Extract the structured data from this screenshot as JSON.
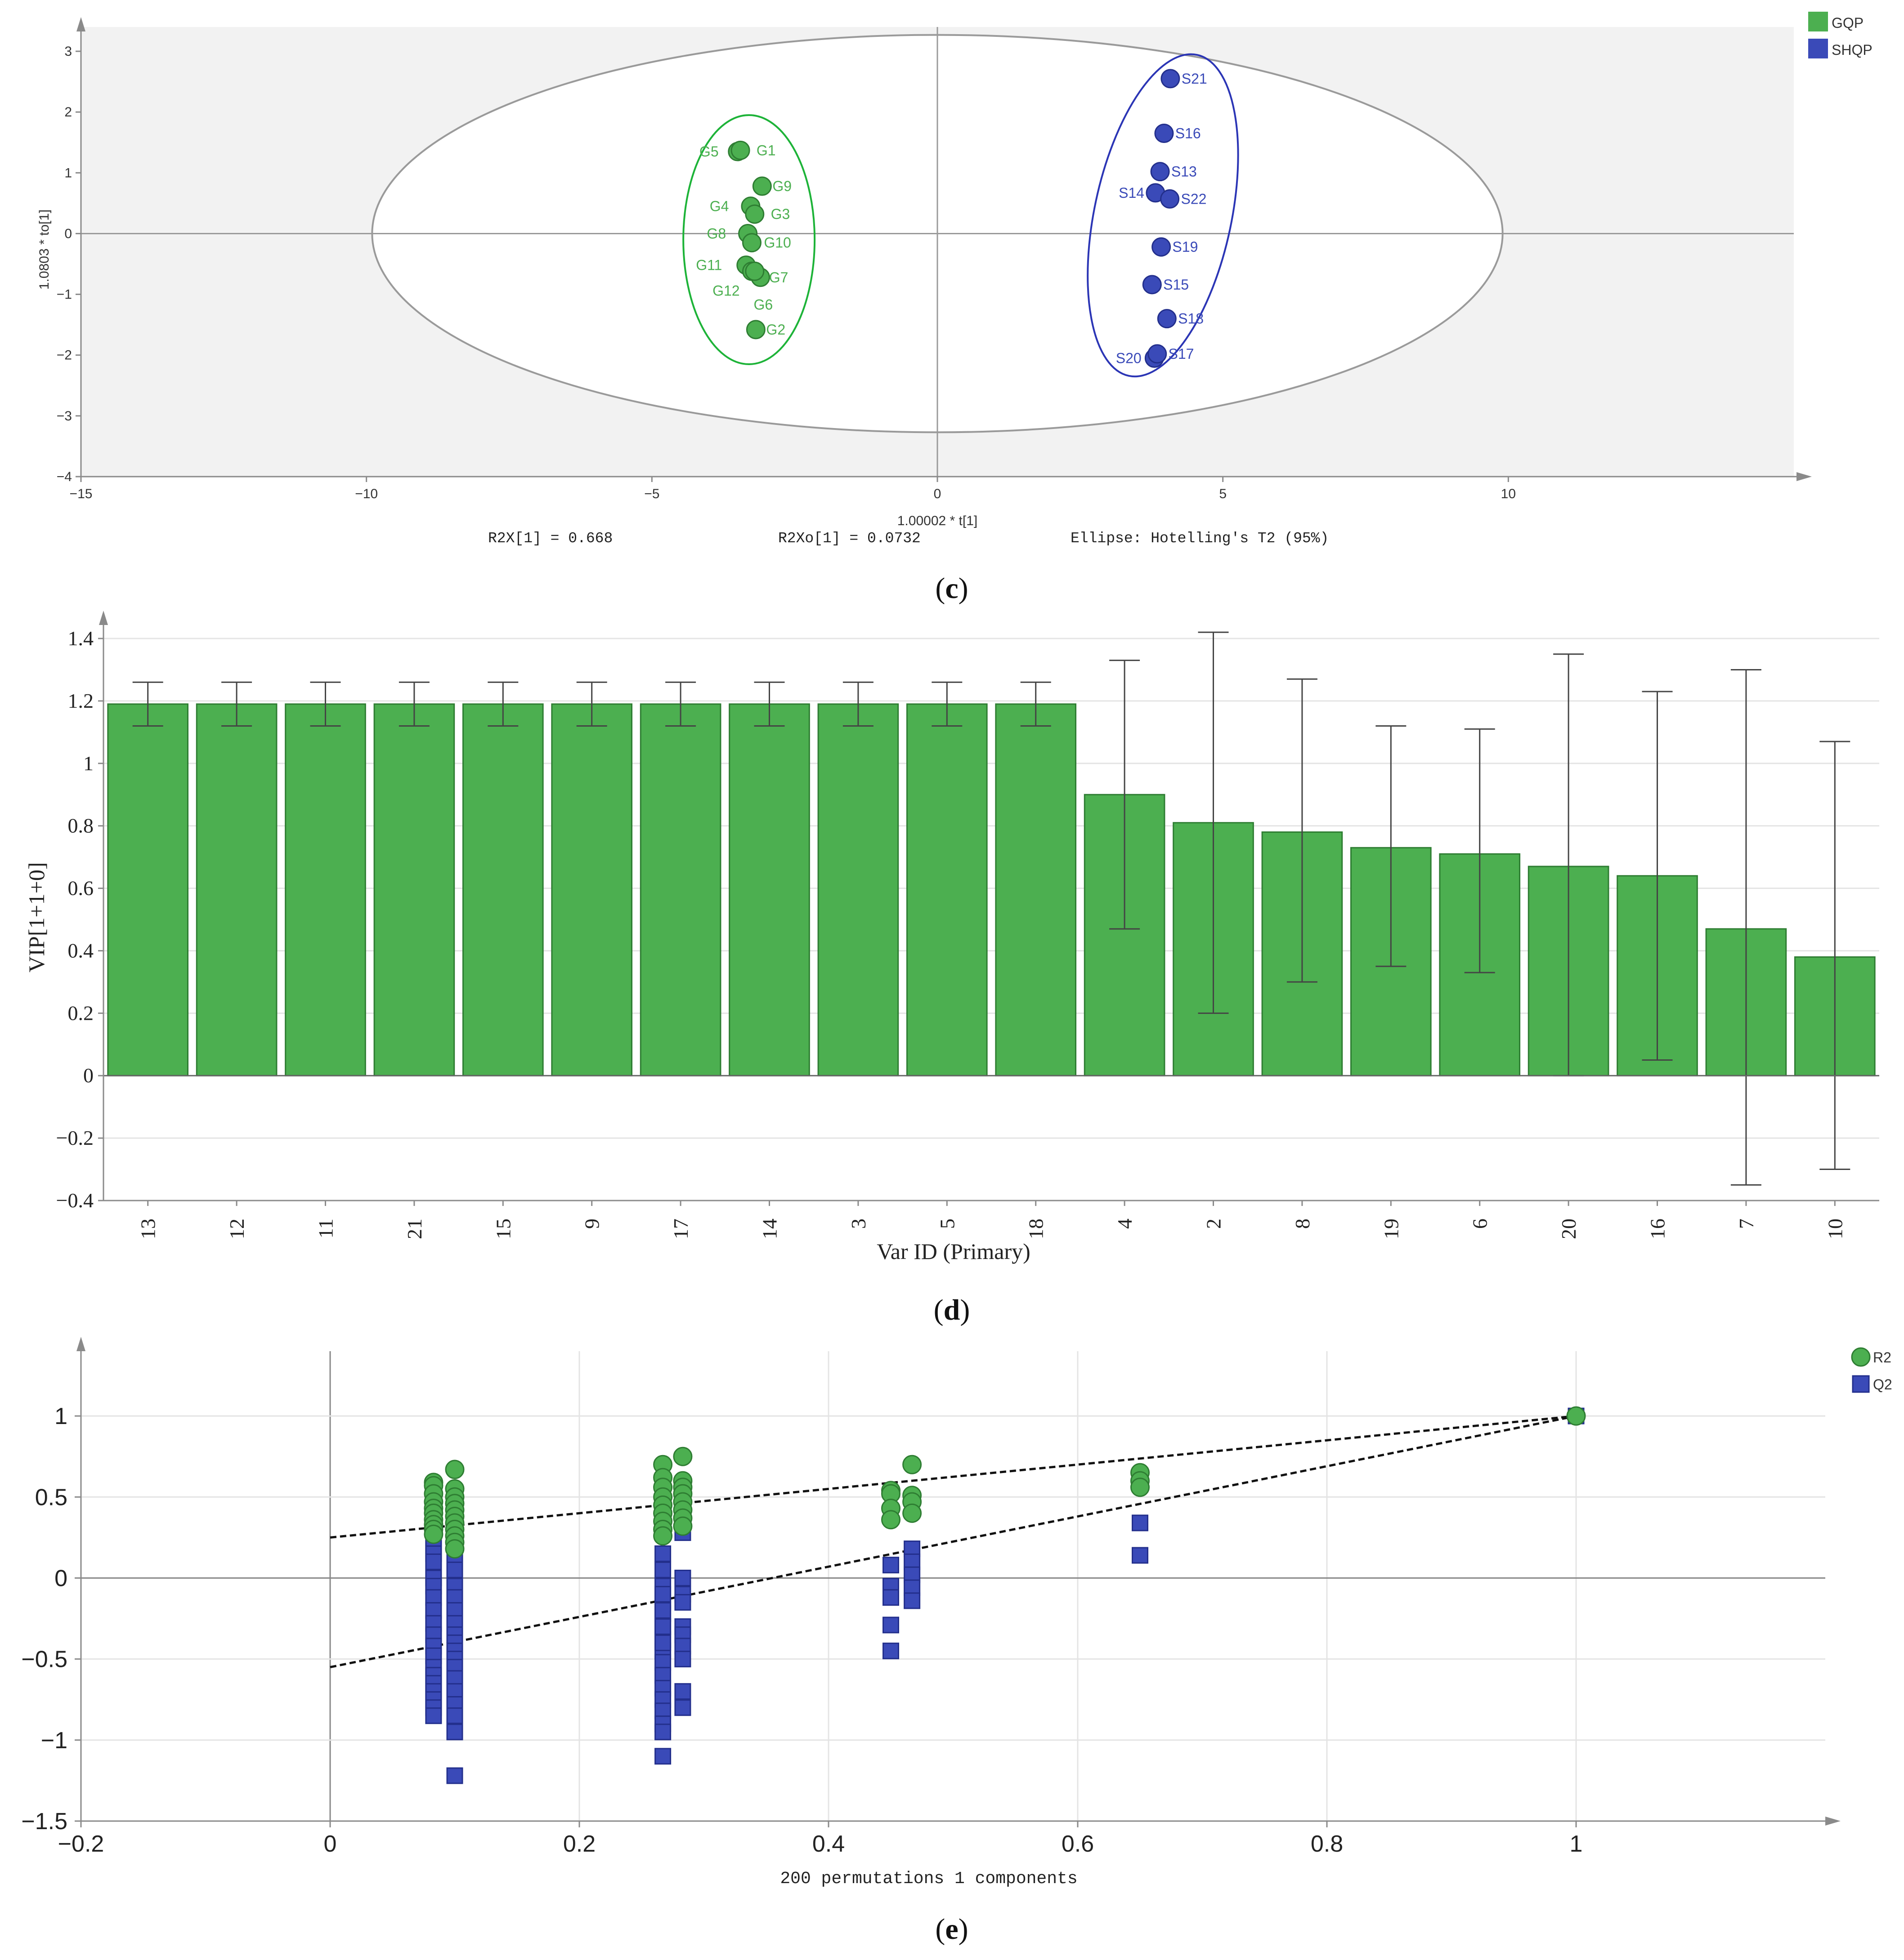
{
  "colors": {
    "green": "#4caf50",
    "green_stroke": "#2e7d32",
    "blue": "#3a4ab8",
    "blue_stroke": "#232f8c",
    "panel_bg": "#f2f2f2",
    "axis": "#8a8a8a",
    "grid": "#e4e4e4"
  },
  "chart_data": [
    {
      "id": "c",
      "type": "scatter",
      "panel_label_open": "(",
      "panel_label": "c",
      "panel_label_close": ")",
      "xlabel": "1.00002 * t[1]",
      "ylabel": "1.0803 * to[1]",
      "xlim": [
        -15,
        15
      ],
      "ylim": [
        -4,
        3.4
      ],
      "xticks": [
        -15,
        -10,
        -5,
        0,
        5,
        10
      ],
      "yticks": [
        -4,
        -3,
        -2,
        -1,
        0,
        1,
        2,
        3
      ],
      "stats": {
        "r2x": "R2X[1] = 0.668",
        "r2xo": "R2Xo[1] = 0.0732",
        "ellipse": "Ellipse: Hotelling's T2 (95%)"
      },
      "legend": [
        {
          "label": "GQP",
          "color": "#4caf50"
        },
        {
          "label": "SHQP",
          "color": "#3a4ab8"
        }
      ],
      "hotelling_ellipse": {
        "cx": 0,
        "cy": 0,
        "rx": 9.9,
        "ry": 3.27
      },
      "group_ellipses": [
        {
          "group": "GQP",
          "cx": -3.3,
          "cy": -0.1,
          "rx": 1.15,
          "ry": 2.05,
          "angle": 0,
          "color": "#1db338"
        },
        {
          "group": "SHQP",
          "cx": 3.95,
          "cy": 0.3,
          "rx": 1.2,
          "ry": 2.7,
          "angle": 12,
          "color": "#2b35b5"
        }
      ],
      "series": [
        {
          "name": "GQP",
          "points": [
            {
              "label": "G5",
              "x": -3.5,
              "y": 1.35,
              "lx": -0.5,
              "ly": 0
            },
            {
              "label": "G1",
              "x": -3.45,
              "y": 1.37,
              "lx": 0.45,
              "ly": 0
            },
            {
              "label": "G9",
              "x": -3.07,
              "y": 0.78,
              "lx": 0.35,
              "ly": 0
            },
            {
              "label": "G4",
              "x": -3.27,
              "y": 0.45,
              "lx": -0.55,
              "ly": 0
            },
            {
              "label": "G3",
              "x": -3.2,
              "y": 0.32,
              "lx": 0.45,
              "ly": 0
            },
            {
              "label": "G8",
              "x": -3.32,
              "y": 0.0,
              "lx": -0.55,
              "ly": 0
            },
            {
              "label": "G10",
              "x": -3.25,
              "y": -0.15,
              "lx": 0.45,
              "ly": 0
            },
            {
              "label": "G11",
              "x": -3.35,
              "y": -0.52,
              "lx": -0.65,
              "ly": 0
            },
            {
              "label": "G7",
              "x": -3.1,
              "y": -0.72,
              "lx": 0.32,
              "ly": 0
            },
            {
              "label": "G12",
              "x": -3.25,
              "y": -0.62,
              "lx": -0.45,
              "ly": -0.32
            },
            {
              "label": "G6",
              "x": -3.2,
              "y": -0.62,
              "lx": 0.15,
              "ly": -0.55
            },
            {
              "label": "G2",
              "x": -3.18,
              "y": -1.58,
              "lx": 0.35,
              "ly": 0
            }
          ]
        },
        {
          "name": "SHQP",
          "points": [
            {
              "label": "S21",
              "x": 4.08,
              "y": 2.55,
              "lx": 0.42,
              "ly": 0
            },
            {
              "label": "S16",
              "x": 3.97,
              "y": 1.65,
              "lx": 0.42,
              "ly": 0
            },
            {
              "label": "S13",
              "x": 3.9,
              "y": 1.02,
              "lx": 0.42,
              "ly": 0
            },
            {
              "label": "S14",
              "x": 3.82,
              "y": 0.67,
              "lx": -0.42,
              "ly": 0
            },
            {
              "label": "S22",
              "x": 4.07,
              "y": 0.57,
              "lx": 0.42,
              "ly": 0
            },
            {
              "label": "S19",
              "x": 3.92,
              "y": -0.22,
              "lx": 0.42,
              "ly": 0
            },
            {
              "label": "S15",
              "x": 3.76,
              "y": -0.84,
              "lx": 0.42,
              "ly": 0
            },
            {
              "label": "S18",
              "x": 4.02,
              "y": -1.4,
              "lx": 0.42,
              "ly": 0
            },
            {
              "label": "S20",
              "x": 3.8,
              "y": -2.05,
              "lx": -0.45,
              "ly": 0
            },
            {
              "label": "S17",
              "x": 3.85,
              "y": -1.98,
              "lx": 0.42,
              "ly": 0
            }
          ]
        }
      ]
    },
    {
      "id": "d",
      "type": "bar",
      "panel_label_open": "(",
      "panel_label": "d",
      "panel_label_close": ")",
      "xlabel": "Var ID (Primary)",
      "ylabel": "VIP[1+1+0]",
      "ylim": [
        -0.4,
        1.4
      ],
      "yticks": [
        -0.4,
        -0.2,
        0,
        0.2,
        0.4,
        0.6,
        0.8,
        1,
        1.2,
        1.4
      ],
      "categories": [
        "13",
        "12",
        "11",
        "21",
        "15",
        "9",
        "17",
        "14",
        "3",
        "5",
        "18",
        "4",
        "2",
        "8",
        "19",
        "6",
        "20",
        "16",
        "7",
        "10"
      ],
      "values": [
        1.19,
        1.19,
        1.19,
        1.19,
        1.19,
        1.19,
        1.19,
        1.19,
        1.19,
        1.19,
        1.19,
        0.9,
        0.81,
        0.78,
        0.73,
        0.71,
        0.67,
        0.64,
        0.47,
        0.38
      ],
      "error_low": [
        1.12,
        1.12,
        1.12,
        1.12,
        1.12,
        1.12,
        1.12,
        1.12,
        1.12,
        1.12,
        1.12,
        0.47,
        0.2,
        0.3,
        0.35,
        0.33,
        0.0,
        0.05,
        -0.35,
        -0.3
      ],
      "error_high": [
        1.26,
        1.26,
        1.26,
        1.26,
        1.26,
        1.26,
        1.26,
        1.26,
        1.26,
        1.26,
        1.26,
        1.33,
        1.42,
        1.27,
        1.12,
        1.11,
        1.35,
        1.23,
        1.3,
        1.07
      ],
      "color": "#4caf50"
    },
    {
      "id": "e",
      "type": "scatter",
      "panel_label_open": "(",
      "panel_label": "e",
      "panel_label_close": ")",
      "xlabel": "200 permutations 1 components",
      "xlim": [
        -0.2,
        1.2
      ],
      "ylim": [
        -1.5,
        1.4
      ],
      "xticks": [
        -0.2,
        0,
        0.2,
        0.4,
        0.6,
        0.8,
        1
      ],
      "yticks": [
        -1.5,
        -1,
        -0.5,
        0,
        0.5,
        1
      ],
      "legend": [
        {
          "label": "R2",
          "marker": "circle",
          "color": "#4caf50"
        },
        {
          "label": "Q2",
          "marker": "square",
          "color": "#3a4ab8"
        }
      ],
      "regression_lines": [
        {
          "name": "R2",
          "x": [
            0,
            1
          ],
          "y": [
            0.25,
            1.0
          ]
        },
        {
          "name": "Q2",
          "x": [
            0,
            1
          ],
          "y": [
            -0.55,
            1.0
          ]
        }
      ],
      "series": [
        {
          "name": "R2",
          "marker": "circle",
          "x": [
            0.083,
            0.083,
            0.083,
            0.083,
            0.083,
            0.083,
            0.083,
            0.083,
            0.083,
            0.083,
            0.1,
            0.1,
            0.1,
            0.1,
            0.1,
            0.1,
            0.1,
            0.1,
            0.1,
            0.1,
            0.1,
            0.267,
            0.267,
            0.267,
            0.267,
            0.267,
            0.267,
            0.267,
            0.267,
            0.267,
            0.283,
            0.283,
            0.283,
            0.283,
            0.283,
            0.283,
            0.283,
            0.283,
            0.45,
            0.45,
            0.45,
            0.45,
            0.467,
            0.467,
            0.467,
            0.467,
            0.65,
            0.65,
            0.65,
            1.0
          ],
          "y": [
            0.59,
            0.57,
            0.52,
            0.47,
            0.43,
            0.4,
            0.36,
            0.33,
            0.3,
            0.27,
            0.67,
            0.55,
            0.5,
            0.46,
            0.42,
            0.38,
            0.34,
            0.3,
            0.26,
            0.22,
            0.18,
            0.7,
            0.62,
            0.56,
            0.5,
            0.45,
            0.4,
            0.35,
            0.3,
            0.26,
            0.75,
            0.6,
            0.56,
            0.52,
            0.47,
            0.42,
            0.37,
            0.32,
            0.54,
            0.52,
            0.43,
            0.36,
            0.7,
            0.51,
            0.47,
            0.4,
            0.65,
            0.6,
            0.56,
            1.0
          ]
        },
        {
          "name": "Q2",
          "marker": "square",
          "x": [
            0.083,
            0.083,
            0.083,
            0.083,
            0.083,
            0.083,
            0.083,
            0.083,
            0.083,
            0.083,
            0.083,
            0.083,
            0.083,
            0.083,
            0.083,
            0.083,
            0.083,
            0.083,
            0.083,
            0.083,
            0.1,
            0.1,
            0.1,
            0.1,
            0.1,
            0.1,
            0.1,
            0.1,
            0.1,
            0.1,
            0.1,
            0.1,
            0.1,
            0.1,
            0.1,
            0.1,
            0.1,
            0.1,
            0.1,
            0.1,
            0.1,
            0.1,
            0.1,
            0.267,
            0.267,
            0.267,
            0.267,
            0.267,
            0.267,
            0.267,
            0.267,
            0.267,
            0.267,
            0.267,
            0.267,
            0.267,
            0.267,
            0.267,
            0.267,
            0.267,
            0.267,
            0.267,
            0.267,
            0.283,
            0.283,
            0.283,
            0.283,
            0.283,
            0.283,
            0.283,
            0.283,
            0.283,
            0.283,
            0.283,
            0.283,
            0.283,
            0.45,
            0.45,
            0.45,
            0.45,
            0.45,
            0.467,
            0.467,
            0.467,
            0.467,
            0.467,
            0.65,
            0.65,
            1.0
          ],
          "y": [
            0.3,
            0.25,
            0.2,
            0.15,
            0.1,
            0.0,
            -0.05,
            -0.12,
            -0.2,
            -0.28,
            -0.35,
            -0.42,
            -0.48,
            -0.55,
            -0.6,
            -0.65,
            -0.7,
            -0.75,
            -0.8,
            -0.85,
            0.47,
            0.43,
            0.38,
            0.33,
            0.27,
            0.18,
            0.1,
            0.05,
            -0.05,
            -0.12,
            -0.2,
            -0.28,
            -0.35,
            -0.4,
            -0.45,
            -0.5,
            -0.55,
            -0.62,
            -0.7,
            -0.78,
            -0.85,
            -0.95,
            -1.22,
            0.15,
            0.05,
            -0.05,
            -0.15,
            -0.22,
            -0.3,
            -0.38,
            -0.45,
            -0.52,
            -0.6,
            -0.68,
            -0.75,
            -0.82,
            -0.9,
            -0.95,
            -1.1,
            -0.1,
            -0.2,
            -0.3,
            -0.4,
            0.45,
            0.4,
            0.35,
            0.28,
            0.0,
            -0.1,
            -0.15,
            -0.3,
            -0.35,
            -0.42,
            -0.5,
            -0.7,
            -0.8,
            0.08,
            -0.05,
            -0.12,
            -0.29,
            -0.45,
            0.18,
            0.1,
            0.02,
            -0.06,
            -0.14,
            0.34,
            0.14,
            1.0
          ]
        }
      ]
    }
  ]
}
